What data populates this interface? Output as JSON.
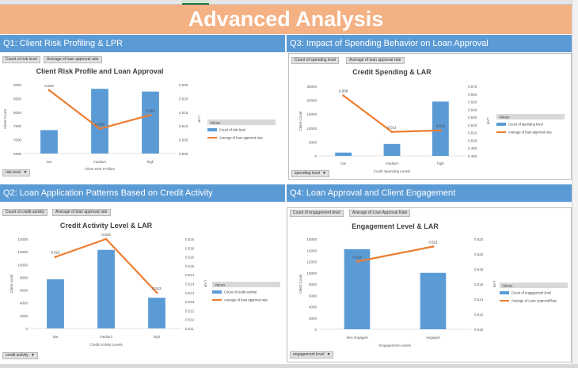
{
  "title": "Advanced Analysis",
  "colors": {
    "bar": "#5b9bd5",
    "line": "#ed7d31",
    "header": "#5b9bd5",
    "banner": "#f4b183"
  },
  "panels": [
    {
      "heading": "Q1: Client Risk Profiling & LPR",
      "fields": [
        "Count of risk level",
        "Average of loan approval rate"
      ],
      "filter": "risk level",
      "chart_data": {
        "type": "bar+line",
        "title": "Client Risk Profile and Loan Approval",
        "xlabel": "Client Risk Profiles",
        "ylabel": "Client Count",
        "y2label": "LAR",
        "categories": [
          "low",
          "medium",
          "high"
        ],
        "series": [
          {
            "name": "Count of risk level",
            "type": "bar",
            "values": [
              7350,
              8850,
              8750
            ]
          },
          {
            "name": "Average of loan approval rate",
            "type": "line",
            "axis": "right",
            "values": [
              0.523,
              0.509,
              0.514
            ]
          }
        ],
        "ylim": [
          6500,
          9000
        ],
        "yticks": [
          "9000",
          "8500",
          "8000",
          "7500",
          "7000",
          "6500"
        ],
        "y2lim": [
          0.5,
          0.525
        ],
        "y2ticks": [
          "0.525",
          "0.520",
          "0.515",
          "0.510",
          "0.505",
          "0.500"
        ],
        "line_labels": [
          "0.523",
          "0.509",
          "0.514"
        ],
        "legend_title": "Values"
      }
    },
    {
      "heading": "Q3: Impact of Spending Behavior on Loan Approval",
      "fields": [
        "Count of spending level",
        "Average of loan approval rate"
      ],
      "filter": "spending level",
      "chart_data": {
        "type": "bar+line",
        "title": "Credit Spending & LAR",
        "xlabel": "Credit Spending Levels",
        "ylabel": "Client Count",
        "y2label": "LAR",
        "categories": [
          "low",
          "medium",
          "high"
        ],
        "series": [
          {
            "name": "Count of spending level",
            "type": "bar",
            "values": [
              1200,
              4300,
              19500
            ]
          },
          {
            "name": "Average of loan approval rate",
            "type": "line",
            "axis": "right",
            "values": [
              0.558,
              0.511,
              0.513
            ]
          }
        ],
        "ylim": [
          0,
          25000
        ],
        "yticks": [
          "25000",
          "20000",
          "15000",
          "10000",
          "5000",
          "0"
        ],
        "y2lim": [
          0.48,
          0.57
        ],
        "y2ticks": [
          "0.570",
          "0.560",
          "0.550",
          "0.540",
          "0.530",
          "0.520",
          "0.510",
          "0.500",
          "0.490",
          "0.480"
        ],
        "line_labels": [
          "0.558",
          "0.511",
          "0.513"
        ],
        "legend_title": "Values"
      }
    },
    {
      "heading": "Q2: Loan Application Patterns Based on Credit Activity",
      "fields": [
        "Count of credit activity",
        "Average of loan approval rate"
      ],
      "filter": "credit activity",
      "chart_data": {
        "type": "bar+line",
        "title": "Credit Activity Level & LAR",
        "xlabel": "Credit Activity Levels",
        "ylabel": "Client count",
        "y2label": "LAR",
        "categories": [
          "low",
          "medium",
          "high"
        ],
        "series": [
          {
            "name": "Count of credit activity",
            "type": "bar",
            "values": [
              7700,
              12300,
              4800
            ]
          },
          {
            "name": "Average of loan approval rate",
            "type": "line",
            "axis": "right",
            "values": [
              0.515,
              0.516,
              0.513
            ]
          }
        ],
        "ylim": [
          0,
          14000
        ],
        "yticks": [
          "14000",
          "12000",
          "10000",
          "8000",
          "6000",
          "4000",
          "2000",
          "0"
        ],
        "y2lim": [
          0.511,
          0.516
        ],
        "y2ticks": [
          "0.516",
          "0.516",
          "0.515",
          "0.515",
          "0.514",
          "0.514",
          "0.513",
          "0.513",
          "0.512",
          "0.512",
          "0.511"
        ],
        "line_labels": [
          "0.515",
          "0.516",
          "0.513"
        ],
        "legend_title": "Values"
      }
    },
    {
      "heading": "Q4: Loan Approval and Client Engagement",
      "fields": [
        "Count of engagement level",
        "Average of Loan Approval Rate"
      ],
      "filter": "engagement level",
      "chart_data": {
        "type": "bar+line",
        "title": "Engagement Level & LAR",
        "xlabel": "Engagement Levels",
        "ylabel": "Client Count",
        "y2label": "LAR",
        "categories": [
          "less engaged",
          "engaged"
        ],
        "series": [
          {
            "name": "Count of engagement level",
            "type": "bar",
            "values": [
              14200,
              10000
            ]
          },
          {
            "name": "Average of Loan ApprovalRate",
            "type": "line",
            "axis": "right",
            "values": [
              0.519,
              0.521
            ]
          }
        ],
        "ylim": [
          0,
          16000
        ],
        "yticks": [
          "16000",
          "14000",
          "12000",
          "10000",
          "8000",
          "6000",
          "4000",
          "2000",
          "0"
        ],
        "y2lim": [
          0.51,
          0.522
        ],
        "y2ticks": [
          "0.522",
          "0.520",
          "0.518",
          "0.516",
          "0.514",
          "0.512",
          "0.510"
        ],
        "line_labels": [
          "0.519",
          "0.521"
        ],
        "legend_title": "Values"
      }
    }
  ]
}
